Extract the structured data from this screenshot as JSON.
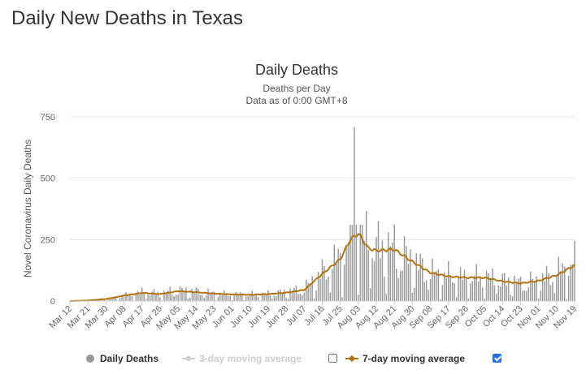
{
  "page": {
    "heading": "Daily New Deaths in Texas"
  },
  "chart_data": {
    "type": "bar",
    "title": "Daily Deaths",
    "subtitle_line1": "Deaths per Day",
    "subtitle_line2": "Data as of 0:00 GMT+8",
    "ylabel": "Novel Coronavirus Daily Deaths",
    "ylim": [
      0,
      750
    ],
    "yticks": [
      0,
      250,
      500,
      750
    ],
    "x_start": "Mar 12",
    "x_end": "Nov 19",
    "xtick_labels": [
      "Mar 12",
      "Mar 21",
      "Mar 30",
      "Apr 08",
      "Apr 17",
      "Apr 26",
      "May 05",
      "May 14",
      "May 23",
      "Jun 01",
      "Jun 10",
      "Jun 19",
      "Jun 28",
      "Jul 07",
      "Jul 16",
      "Jul 25",
      "Aug 03",
      "Aug 12",
      "Aug 21",
      "Aug 30",
      "Sep 08",
      "Sep 17",
      "Sep 26",
      "Oct 05",
      "Oct 14",
      "Oct 23",
      "Nov 01",
      "Nov 10",
      "Nov 19"
    ],
    "grid": true,
    "legend_position": "bottom",
    "series": [
      {
        "name": "Daily Deaths",
        "type": "bar",
        "color": "#999999",
        "visible": true
      },
      {
        "name": "3-day moving average",
        "type": "line",
        "color": "#cccccc",
        "visible": false
      },
      {
        "name": "7-day moving average",
        "type": "line",
        "color": "#b5730f",
        "visible": true
      }
    ],
    "daily_deaths_anchors": [
      [
        "Mar 12",
        0
      ],
      [
        "Mar 21",
        1
      ],
      [
        "Mar 30",
        5
      ],
      [
        "Apr 08",
        20
      ],
      [
        "Apr 17",
        35
      ],
      [
        "Apr 26",
        30
      ],
      [
        "May 05",
        42
      ],
      [
        "May 14",
        38
      ],
      [
        "May 23",
        30
      ],
      [
        "Jun 01",
        25
      ],
      [
        "Jun 10",
        25
      ],
      [
        "Jun 19",
        28
      ],
      [
        "Jun 28",
        35
      ],
      [
        "Jul 07",
        50
      ],
      [
        "Jul 16",
        110
      ],
      [
        "Jul 25",
        170
      ],
      [
        "Jul 30",
        260
      ],
      [
        "Aug 01",
        708
      ],
      [
        "Aug 03",
        270
      ],
      [
        "Aug 12",
        210
      ],
      [
        "Aug 21",
        205
      ],
      [
        "Aug 30",
        155
      ],
      [
        "Sep 08",
        110
      ],
      [
        "Sep 17",
        100
      ],
      [
        "Sep 26",
        90
      ],
      [
        "Oct 05",
        95
      ],
      [
        "Oct 14",
        80
      ],
      [
        "Oct 23",
        70
      ],
      [
        "Nov 01",
        80
      ],
      [
        "Nov 10",
        110
      ],
      [
        "Nov 19",
        150
      ]
    ],
    "moving_average_7day_anchors": [
      [
        "Mar 12",
        0
      ],
      [
        "Mar 21",
        2
      ],
      [
        "Mar 30",
        8
      ],
      [
        "Apr 08",
        22
      ],
      [
        "Apr 17",
        33
      ],
      [
        "Apr 26",
        28
      ],
      [
        "May 05",
        40
      ],
      [
        "May 14",
        36
      ],
      [
        "May 23",
        30
      ],
      [
        "Jun 01",
        27
      ],
      [
        "Jun 10",
        25
      ],
      [
        "Jun 19",
        28
      ],
      [
        "Jun 28",
        34
      ],
      [
        "Jul 07",
        45
      ],
      [
        "Jul 16",
        110
      ],
      [
        "Jul 25",
        170
      ],
      [
        "Jul 30",
        250
      ],
      [
        "Aug 03",
        275
      ],
      [
        "Aug 08",
        215
      ],
      [
        "Aug 12",
        205
      ],
      [
        "Aug 21",
        210
      ],
      [
        "Aug 30",
        160
      ],
      [
        "Sep 08",
        115
      ],
      [
        "Sep 17",
        100
      ],
      [
        "Sep 26",
        95
      ],
      [
        "Oct 05",
        95
      ],
      [
        "Oct 14",
        80
      ],
      [
        "Oct 23",
        72
      ],
      [
        "Nov 01",
        82
      ],
      [
        "Nov 10",
        105
      ],
      [
        "Nov 19",
        145
      ]
    ]
  }
}
